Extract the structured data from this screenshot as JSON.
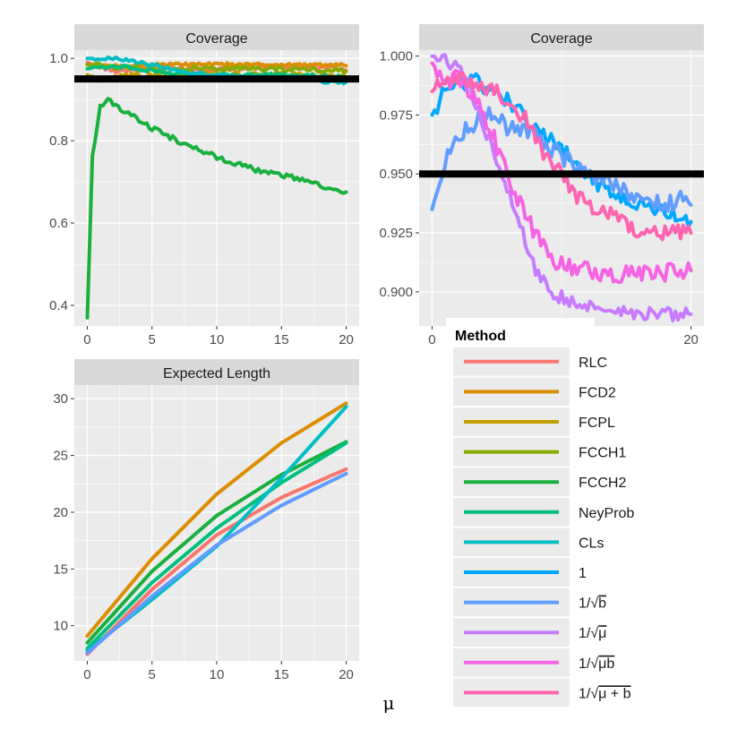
{
  "figure": {
    "xlabel": "μ",
    "reference_line_label": "",
    "colors": {
      "panel_bg": "#ebebeb",
      "grid": "#ffffff",
      "strip_bg": "#d9d9d9",
      "reference_line": "#000000"
    }
  },
  "chart_data": [
    {
      "id": "coverage_all",
      "type": "line",
      "title": "Coverage",
      "xlabel": "",
      "ylabel": "",
      "xlim": [
        -1,
        21
      ],
      "ylim": [
        0.35,
        1.02
      ],
      "xticks": [
        0,
        5,
        10,
        15,
        20
      ],
      "yticks": [
        0.4,
        0.6,
        0.8,
        1.0
      ],
      "ytick_labels": [
        "0.4",
        "0.6",
        "0.8",
        "1.0"
      ],
      "reference_y": 0.95,
      "series": [
        {
          "name": "RLC",
          "color": "#f8766d",
          "jitter": 0.005,
          "points": [
            [
              0,
              0.99
            ],
            [
              2,
              0.97
            ],
            [
              5,
              0.975
            ],
            [
              10,
              0.975
            ],
            [
              15,
              0.98
            ],
            [
              20,
              0.975
            ]
          ]
        },
        {
          "name": "FCD2",
          "color": "#db8e00",
          "jitter": 0.004,
          "points": [
            [
              0,
              0.985
            ],
            [
              2,
              0.98
            ],
            [
              5,
              0.985
            ],
            [
              10,
              0.985
            ],
            [
              15,
              0.985
            ],
            [
              20,
              0.983
            ]
          ]
        },
        {
          "name": "FCPL",
          "color": "#c29e00",
          "jitter": 0.008,
          "points": [
            [
              0,
              0.96
            ],
            [
              1,
              0.945
            ],
            [
              3,
              0.955
            ],
            [
              6,
              0.96
            ],
            [
              10,
              0.96
            ],
            [
              15,
              0.96
            ],
            [
              20,
              0.955
            ]
          ]
        },
        {
          "name": "FCCH1",
          "color": "#86ab00",
          "jitter": 0.006,
          "points": [
            [
              0,
              0.985
            ],
            [
              2,
              0.98
            ],
            [
              5,
              0.975
            ],
            [
              10,
              0.975
            ],
            [
              15,
              0.975
            ],
            [
              20,
              0.97
            ]
          ]
        },
        {
          "name": "FCCH2",
          "color": "#19b03d",
          "jitter": 0.006,
          "points": [
            [
              0,
              0.37
            ],
            [
              0.4,
              0.76
            ],
            [
              1,
              0.88
            ],
            [
              1.5,
              0.9
            ],
            [
              2,
              0.89
            ],
            [
              3,
              0.87
            ],
            [
              5,
              0.83
            ],
            [
              7,
              0.8
            ],
            [
              10,
              0.76
            ],
            [
              13,
              0.73
            ],
            [
              16,
              0.71
            ],
            [
              18,
              0.69
            ],
            [
              20,
              0.67
            ]
          ]
        },
        {
          "name": "NeyProb",
          "color": "#00bf7d",
          "jitter": 0.004,
          "points": [
            [
              0,
              0.975
            ],
            [
              3,
              0.98
            ],
            [
              6,
              0.965
            ],
            [
              10,
              0.96
            ],
            [
              15,
              0.96
            ],
            [
              20,
              0.955
            ]
          ]
        },
        {
          "name": "CLs",
          "color": "#00bfc4",
          "jitter": 0.004,
          "points": [
            [
              0,
              1.0
            ],
            [
              2,
              1.0
            ],
            [
              5,
              0.985
            ],
            [
              8,
              0.965
            ],
            [
              12,
              0.955
            ],
            [
              16,
              0.95
            ],
            [
              20,
              0.94
            ]
          ]
        }
      ]
    },
    {
      "id": "coverage_zoom",
      "type": "line",
      "title": "Coverage",
      "xlabel": "",
      "ylabel": "",
      "xlim": [
        -1,
        21
      ],
      "ylim": [
        0.8855,
        1.0025
      ],
      "xticks": [
        0,
        20
      ],
      "yticks": [
        0.9,
        0.925,
        0.95,
        0.975,
        1.0
      ],
      "ytick_labels": [
        "0.900",
        "0.925",
        "0.950",
        "0.975",
        "1.000"
      ],
      "reference_y": 0.95,
      "series": [
        {
          "name": "1",
          "color": "#00a9ff",
          "jitter": 0.0035,
          "points": [
            [
              0,
              0.975
            ],
            [
              1,
              0.985
            ],
            [
              3,
              0.99
            ],
            [
              5,
              0.985
            ],
            [
              7,
              0.975
            ],
            [
              9,
              0.965
            ],
            [
              11,
              0.955
            ],
            [
              13,
              0.945
            ],
            [
              15,
              0.94
            ],
            [
              17,
              0.935
            ],
            [
              20,
              0.93
            ]
          ]
        },
        {
          "name": "1/√b",
          "color": "#619cff",
          "jitter": 0.004,
          "points": [
            [
              0,
              0.935
            ],
            [
              1,
              0.955
            ],
            [
              2,
              0.965
            ],
            [
              3,
              0.97
            ],
            [
              4,
              0.975
            ],
            [
              6,
              0.97
            ],
            [
              8,
              0.965
            ],
            [
              10,
              0.958
            ],
            [
              12,
              0.95
            ],
            [
              14,
              0.945
            ],
            [
              16,
              0.94
            ],
            [
              18,
              0.938
            ],
            [
              20,
              0.94
            ]
          ]
        },
        {
          "name": "1/√μ",
          "color": "#c77cff",
          "jitter": 0.003,
          "points": [
            [
              0,
              1.0
            ],
            [
              1,
              0.999
            ],
            [
              2,
              0.995
            ],
            [
              3,
              0.985
            ],
            [
              4,
              0.97
            ],
            [
              5,
              0.955
            ],
            [
              6,
              0.94
            ],
            [
              7,
              0.925
            ],
            [
              8,
              0.91
            ],
            [
              9,
              0.9
            ],
            [
              11,
              0.895
            ],
            [
              14,
              0.892
            ],
            [
              17,
              0.891
            ],
            [
              20,
              0.89
            ]
          ]
        },
        {
          "name": "1/√μb",
          "color": "#f564e3",
          "jitter": 0.004,
          "points": [
            [
              0,
              0.997
            ],
            [
              1,
              0.99
            ],
            [
              2,
              0.99
            ],
            [
              3,
              0.985
            ],
            [
              4,
              0.975
            ],
            [
              5,
              0.962
            ],
            [
              6,
              0.948
            ],
            [
              7,
              0.935
            ],
            [
              8,
              0.925
            ],
            [
              9,
              0.915
            ],
            [
              11,
              0.91
            ],
            [
              14,
              0.908
            ],
            [
              17,
              0.907
            ],
            [
              20,
              0.91
            ]
          ]
        },
        {
          "name": "1/√(μ+b)",
          "color": "#ff64b0",
          "jitter": 0.0035,
          "points": [
            [
              0,
              0.985
            ],
            [
              1,
              0.99
            ],
            [
              2,
              0.99
            ],
            [
              3,
              0.99
            ],
            [
              5,
              0.985
            ],
            [
              7,
              0.975
            ],
            [
              8,
              0.965
            ],
            [
              9,
              0.955
            ],
            [
              10,
              0.95
            ],
            [
              11,
              0.94
            ],
            [
              13,
              0.935
            ],
            [
              15,
              0.928
            ],
            [
              17,
              0.925
            ],
            [
              20,
              0.925
            ]
          ]
        }
      ]
    },
    {
      "id": "expected_length",
      "type": "line",
      "title": "Expected Length",
      "xlabel": "μ",
      "ylabel": "",
      "xlim": [
        -1,
        21
      ],
      "ylim": [
        6.9,
        31.2
      ],
      "xticks": [
        0,
        5,
        10,
        15,
        20
      ],
      "yticks": [
        10,
        15,
        20,
        25,
        30
      ],
      "ytick_labels": [
        "10",
        "15",
        "20",
        "25",
        "30"
      ],
      "reference_y": null,
      "series": [
        {
          "name": "RLC",
          "color": "#f8766d",
          "jitter": 0,
          "points": [
            [
              0,
              7.5
            ],
            [
              5,
              13.2
            ],
            [
              10,
              18.0
            ],
            [
              15,
              21.3
            ],
            [
              20,
              23.8
            ]
          ]
        },
        {
          "name": "FCD2",
          "color": "#db8e00",
          "jitter": 0,
          "points": [
            [
              0,
              9.1
            ],
            [
              5,
              15.9
            ],
            [
              10,
              21.6
            ],
            [
              15,
              26.1
            ],
            [
              20,
              29.6
            ]
          ]
        },
        {
          "name": "FCCH2",
          "color": "#19b03d",
          "jitter": 0,
          "points": [
            [
              0,
              8.5
            ],
            [
              5,
              14.8
            ],
            [
              10,
              19.7
            ],
            [
              15,
              23.3
            ],
            [
              20,
              26.2
            ]
          ]
        },
        {
          "name": "NeyProb",
          "color": "#00bf7d",
          "jitter": 0,
          "points": [
            [
              0,
              8.0
            ],
            [
              5,
              13.8
            ],
            [
              10,
              18.6
            ],
            [
              15,
              22.6
            ],
            [
              20,
              26.1
            ]
          ]
        },
        {
          "name": "CLs",
          "color": "#00bfc4",
          "jitter": 0,
          "points": [
            [
              0,
              7.8
            ],
            [
              5,
              12.3
            ],
            [
              10,
              17.0
            ],
            [
              15,
              23.0
            ],
            [
              20,
              29.3
            ]
          ]
        },
        {
          "name": "1/√b",
          "color": "#619cff",
          "jitter": 0,
          "points": [
            [
              0,
              7.6
            ],
            [
              5,
              12.6
            ],
            [
              10,
              17.1
            ],
            [
              15,
              20.6
            ],
            [
              20,
              23.4
            ]
          ]
        }
      ]
    }
  ],
  "legend": {
    "title": "Method",
    "entries": [
      {
        "label": "RLC",
        "color": "#f8766d",
        "radical": "",
        "suffix": ""
      },
      {
        "label": "FCD2",
        "color": "#db8e00",
        "radical": "",
        "suffix": ""
      },
      {
        "label": "FCPL",
        "color": "#c29e00",
        "radical": "",
        "suffix": ""
      },
      {
        "label": "FCCH1",
        "color": "#86ab00",
        "radical": "",
        "suffix": ""
      },
      {
        "label": "FCCH2",
        "color": "#19b03d",
        "radical": "",
        "suffix": ""
      },
      {
        "label": "NeyProb",
        "color": "#00bf7d",
        "radical": "",
        "suffix": ""
      },
      {
        "label": "CLs",
        "color": "#00bfc4",
        "radical": "",
        "suffix": ""
      },
      {
        "label": "1",
        "color": "#00a9ff",
        "radical": "",
        "suffix": ""
      },
      {
        "label": "1/",
        "color": "#619cff",
        "radical": "√",
        "suffix": "b"
      },
      {
        "label": "1/",
        "color": "#c77cff",
        "radical": "√",
        "suffix": "μ"
      },
      {
        "label": "1/",
        "color": "#f564e3",
        "radical": "√",
        "suffix": "μb"
      },
      {
        "label": "1/",
        "color": "#ff64b0",
        "radical": "√",
        "suffix": "μ + b"
      }
    ]
  }
}
